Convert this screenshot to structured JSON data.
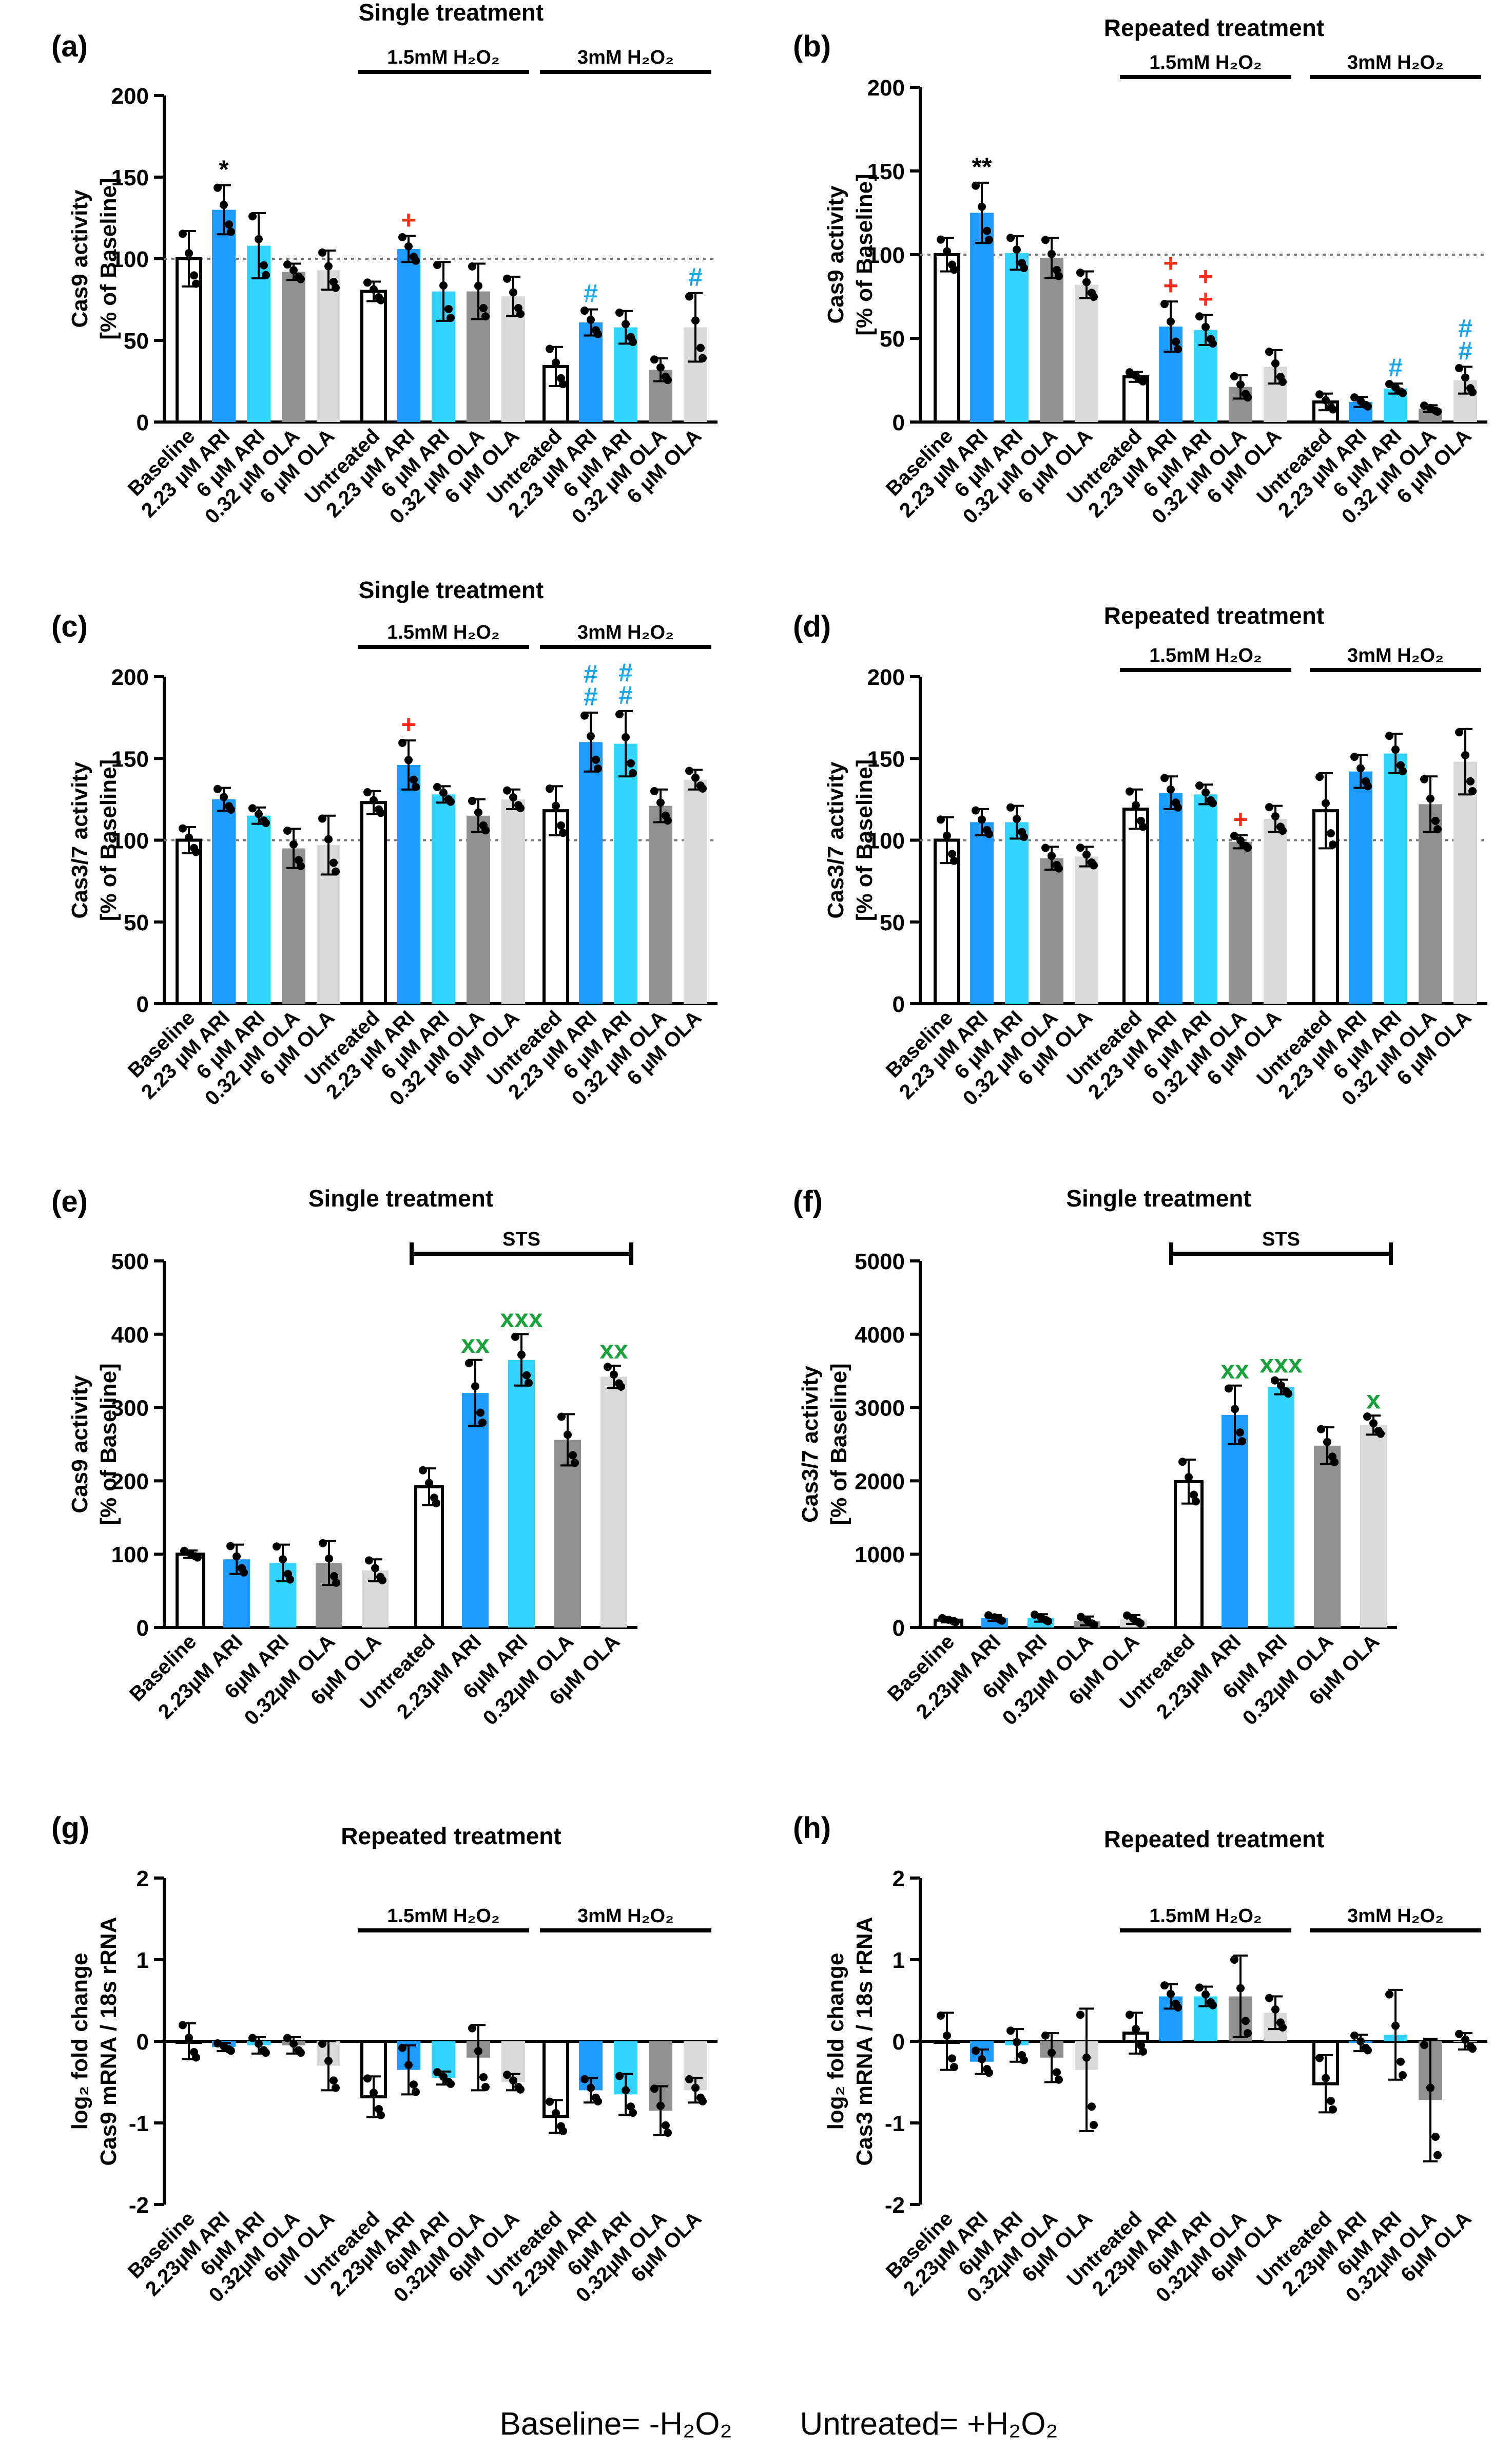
{
  "colors": {
    "baseline": "#ffffff",
    "ari_low": "#1e9bff",
    "ari_high": "#33d4ff",
    "ola_low": "#909090",
    "ola_high": "#d9d9d9",
    "sig_black": "#000000",
    "sig_red": "#ff2a1a",
    "sig_blue": "#1aa7ec",
    "sig_green": "#18a33a"
  },
  "footer": {
    "baseline_def": "Baseline= -H₂O₂",
    "untreated_def": "Untreated= +H₂O₂"
  },
  "chart_data": [
    {
      "id": "a",
      "panel_label": "(a)",
      "type": "bar",
      "title": "Single treatment",
      "ylabel": [
        "Cas9 activity",
        "[% of Baseline]"
      ],
      "ylim": [
        0,
        200
      ],
      "yticks": [
        0,
        50,
        100,
        150,
        200
      ],
      "reference_line": 100,
      "brackets": [
        {
          "label": "1.5mM H₂O₂",
          "from": 5,
          "to": 9
        },
        {
          "label": "3mM H₂O₂",
          "from": 10,
          "to": 14
        }
      ],
      "categories": [
        "Baseline",
        "2.23 µM ARI",
        "6 µM ARI",
        "0.32 µM OLA",
        "6 µM OLA",
        "Untreated",
        "2.23 µM ARI",
        "6 µM ARI",
        "0.32 µM OLA",
        "6 µM OLA",
        "Untreated",
        "2.23 µM ARI",
        "6 µM ARI",
        "0.32 µM OLA",
        "6 µM OLA"
      ],
      "values": [
        100,
        130,
        108,
        92,
        93,
        80,
        106,
        80,
        80,
        77,
        34,
        61,
        58,
        32,
        58
      ],
      "errors": [
        17,
        15,
        20,
        5,
        12,
        6,
        8,
        18,
        17,
        12,
        12,
        8,
        10,
        7,
        21
      ],
      "annotations": [
        {
          "bar": 1,
          "text": "*",
          "color": "black"
        },
        {
          "bar": 6,
          "text": "+",
          "color": "red"
        },
        {
          "bar": 11,
          "text": "#",
          "color": "blue"
        },
        {
          "bar": 14,
          "text": "#",
          "color": "blue"
        }
      ]
    },
    {
      "id": "b",
      "panel_label": "(b)",
      "type": "bar",
      "title": "Repeated treatment",
      "ylabel": [
        "Cas9 activity",
        "[% of Baseline]"
      ],
      "ylim": [
        0,
        200
      ],
      "yticks": [
        0,
        50,
        100,
        150,
        200
      ],
      "reference_line": 100,
      "brackets": [
        {
          "label": "1.5mM H₂O₂",
          "from": 5,
          "to": 9
        },
        {
          "label": "3mM H₂O₂",
          "from": 10,
          "to": 14
        }
      ],
      "categories": [
        "Baseline",
        "2.23 µM ARI",
        "6 µM ARI",
        "0.32 µM OLA",
        "6 µM OLA",
        "Untreated",
        "2.23 µM ARI",
        "6 µM ARI",
        "0.32 µM OLA",
        "6 µM OLA",
        "Untreated",
        "2.23 µM ARI",
        "6 µM ARI",
        "0.32 µM OLA",
        "6 µM OLA"
      ],
      "values": [
        100,
        125,
        101,
        98,
        82,
        27,
        57,
        55,
        21,
        33,
        12,
        12,
        20,
        8,
        25
      ],
      "errors": [
        10,
        18,
        10,
        12,
        8,
        3,
        15,
        9,
        7,
        10,
        5,
        3,
        3,
        2,
        8
      ],
      "annotations": [
        {
          "bar": 1,
          "text": "**",
          "color": "black"
        },
        {
          "bar": 6,
          "text": "++",
          "color": "red"
        },
        {
          "bar": 7,
          "text": "++",
          "color": "red"
        },
        {
          "bar": 12,
          "text": "#",
          "color": "blue"
        },
        {
          "bar": 14,
          "text": "##",
          "color": "blue"
        }
      ]
    },
    {
      "id": "c",
      "panel_label": "(c)",
      "type": "bar",
      "title": "Single treatment",
      "ylabel": [
        "Cas3/7 activity",
        "[% of Baseline]"
      ],
      "ylim": [
        0,
        200
      ],
      "yticks": [
        0,
        50,
        100,
        150,
        200
      ],
      "reference_line": 100,
      "brackets": [
        {
          "label": "1.5mM H₂O₂",
          "from": 5,
          "to": 9
        },
        {
          "label": "3mM H₂O₂",
          "from": 10,
          "to": 14
        }
      ],
      "categories": [
        "Baseline",
        "2.23 µM ARI",
        "6 µM ARI",
        "0.32 µM OLA",
        "6 µM OLA",
        "Untreated",
        "2.23 µM ARI",
        "6 µM ARI",
        "0.32 µM OLA",
        "6 µM OLA",
        "Untreated",
        "2.23 µM ARI",
        "6 µM ARI",
        "0.32 µM OLA",
        "6 µM OLA"
      ],
      "values": [
        100,
        125,
        115,
        95,
        97,
        123,
        146,
        128,
        115,
        125,
        118,
        160,
        159,
        121,
        137
      ],
      "errors": [
        8,
        7,
        5,
        12,
        18,
        7,
        15,
        5,
        10,
        6,
        15,
        18,
        20,
        10,
        6
      ],
      "annotations": [
        {
          "bar": 6,
          "text": "+",
          "color": "red"
        },
        {
          "bar": 11,
          "text": "##",
          "color": "blue"
        },
        {
          "bar": 12,
          "text": "##",
          "color": "blue"
        }
      ]
    },
    {
      "id": "d",
      "panel_label": "(d)",
      "type": "bar",
      "title": "Repeated treatment",
      "ylabel": [
        "Cas3/7 activity",
        "[% of Baseline]"
      ],
      "ylim": [
        0,
        200
      ],
      "yticks": [
        0,
        50,
        100,
        150,
        200
      ],
      "reference_line": 100,
      "brackets": [
        {
          "label": "1.5mM H₂O₂",
          "from": 5,
          "to": 9
        },
        {
          "label": "3mM H₂O₂",
          "from": 10,
          "to": 14
        }
      ],
      "categories": [
        "Baseline",
        "2.23 µM ARI",
        "6 µM ARI",
        "0.32 µM OLA",
        "6 µM OLA",
        "Untreated",
        "2.23 µM ARI",
        "6 µM ARI",
        "0.32 µM OLA",
        "6 µM OLA",
        "Untreated",
        "2.23 µM ARI",
        "6 µM ARI",
        "0.32 µM OLA",
        "6 µM OLA"
      ],
      "values": [
        100,
        111,
        111,
        89,
        90,
        119,
        129,
        128,
        99,
        113,
        118,
        142,
        153,
        122,
        148
      ],
      "errors": [
        14,
        8,
        10,
        7,
        6,
        12,
        10,
        6,
        4,
        8,
        23,
        10,
        12,
        17,
        20
      ],
      "annotations": [
        {
          "bar": 8,
          "text": "+",
          "color": "red"
        }
      ]
    },
    {
      "id": "e",
      "panel_label": "(e)",
      "type": "bar",
      "title": "Single treatment",
      "ylabel": [
        "Cas9 activity",
        "[% of Baseline]"
      ],
      "ylim": [
        0,
        500
      ],
      "yticks": [
        0,
        100,
        200,
        300,
        400,
        500
      ],
      "reference_line": null,
      "brackets": [
        {
          "label": "STS",
          "from": 5,
          "to": 9,
          "ticked": true
        }
      ],
      "categories": [
        "Baseline",
        "2.23µM ARI",
        "6µM ARI",
        "0.32µM OLA",
        "6µM OLA",
        "Untreated",
        "2.23µM ARI",
        "6µM ARI",
        "0.32µM OLA",
        "6µM OLA"
      ],
      "values": [
        100,
        93,
        88,
        88,
        78,
        192,
        320,
        365,
        256,
        342
      ],
      "errors": [
        5,
        20,
        25,
        30,
        15,
        25,
        45,
        35,
        35,
        15
      ],
      "annotations": [
        {
          "bar": 6,
          "text": "xx",
          "color": "green"
        },
        {
          "bar": 7,
          "text": "xxx",
          "color": "green"
        },
        {
          "bar": 9,
          "text": "xx",
          "color": "green"
        }
      ]
    },
    {
      "id": "f",
      "panel_label": "(f)",
      "type": "bar",
      "title": "Single treatment",
      "ylabel": [
        "Cas3/7 activity",
        "[% of Baseline]"
      ],
      "ylim": [
        0,
        5000
      ],
      "yticks": [
        0,
        1000,
        2000,
        3000,
        4000,
        5000
      ],
      "reference_line": null,
      "brackets": [
        {
          "label": "STS",
          "from": 5,
          "to": 9,
          "ticked": true
        }
      ],
      "categories": [
        "Baseline",
        "2.23µM ARI",
        "6µM ARI",
        "0.32µM OLA",
        "6µM OLA",
        "Untreated",
        "2.23µM ARI",
        "6µM ARI",
        "0.32µM OLA",
        "6µM OLA"
      ],
      "values": [
        100,
        130,
        130,
        90,
        110,
        1990,
        2900,
        3280,
        2480,
        2760
      ],
      "errors": [
        30,
        40,
        50,
        60,
        60,
        300,
        400,
        100,
        250,
        130
      ],
      "annotations": [
        {
          "bar": 6,
          "text": "xx",
          "color": "green"
        },
        {
          "bar": 7,
          "text": "xxx",
          "color": "green"
        },
        {
          "bar": 9,
          "text": "x",
          "color": "green"
        }
      ]
    },
    {
      "id": "g",
      "panel_label": "(g)",
      "type": "bar",
      "title": "Repeated treatment",
      "ylabel": [
        "log₂ fold change",
        "Cas9 mRNA / 18s rRNA"
      ],
      "ylim": [
        -2,
        2
      ],
      "yticks": [
        -2,
        -1,
        0,
        1,
        2
      ],
      "reference_line": null,
      "zero_axis": true,
      "brackets": [
        {
          "label": "1.5mM H₂O₂",
          "from": 5,
          "to": 9
        },
        {
          "label": "3mM H₂O₂",
          "from": 10,
          "to": 14
        }
      ],
      "categories": [
        "Baseline",
        "2.23µM ARI",
        "6µM ARI",
        "0.32µM OLA",
        "6µM OLA",
        "Untreated",
        "2.23µM ARI",
        "6µM ARI",
        "0.32µM OLA",
        "6µM OLA",
        "Untreated",
        "2.23µM ARI",
        "6µM ARI",
        "0.32µM OLA",
        "6µM OLA"
      ],
      "values": [
        0,
        -0.07,
        -0.05,
        -0.05,
        -0.3,
        -0.68,
        -0.35,
        -0.45,
        -0.2,
        -0.5,
        -0.92,
        -0.6,
        -0.65,
        -0.85,
        -0.6
      ],
      "errors": [
        0.22,
        0.05,
        0.1,
        0.1,
        0.3,
        0.25,
        0.3,
        0.08,
        0.4,
        0.1,
        0.2,
        0.15,
        0.25,
        0.3,
        0.15
      ],
      "annotations": []
    },
    {
      "id": "h",
      "panel_label": "(h)",
      "type": "bar",
      "title": "Repeated treatment",
      "ylabel": [
        "log₂ fold change",
        "Cas3 mRNA / 18s rRNA"
      ],
      "ylim": [
        -2,
        2
      ],
      "yticks": [
        -2,
        -1,
        0,
        1,
        2
      ],
      "reference_line": null,
      "zero_axis": true,
      "brackets": [
        {
          "label": "1.5mM H₂O₂",
          "from": 5,
          "to": 9
        },
        {
          "label": "3mM H₂O₂",
          "from": 10,
          "to": 14
        }
      ],
      "categories": [
        "Baseline",
        "2.23µM ARI",
        "6µM ARI",
        "0.32µM OLA",
        "6µM OLA",
        "Untreated",
        "2.23µM ARI",
        "6µM ARI",
        "0.32µM OLA",
        "6µM OLA",
        "Untreated",
        "2.23µM ARI",
        "6µM ARI",
        "0.32µM OLA",
        "6µM OLA"
      ],
      "values": [
        0,
        -0.25,
        -0.05,
        -0.2,
        -0.35,
        0.1,
        0.55,
        0.55,
        0.55,
        0.35,
        -0.52,
        -0.02,
        0.08,
        -0.72,
        0
      ],
      "errors": [
        0.35,
        0.15,
        0.2,
        0.3,
        0.75,
        0.25,
        0.15,
        0.12,
        0.5,
        0.2,
        0.35,
        0.1,
        0.55,
        0.75,
        0.1
      ],
      "annotations": []
    }
  ]
}
